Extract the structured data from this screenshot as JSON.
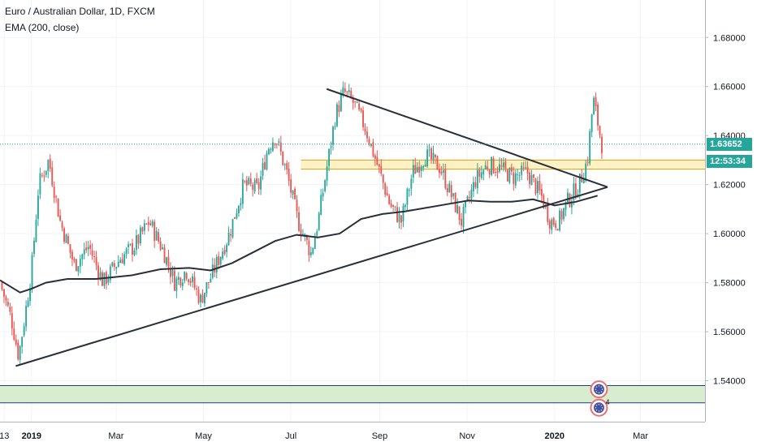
{
  "header": {
    "title": "Euro / Australian Dollar, 1D, FXCM",
    "indicator": "EMA (200, close)"
  },
  "price_axis": {
    "current_price": "1.63652",
    "countdown": "12:53:34"
  },
  "colors": {
    "up": "#26a69a",
    "down": "#ef5350",
    "ema": "#2a2e39",
    "trendline": "#2a2e39",
    "resistance_zone": "#fff2c2",
    "support_zone": "#d8edd0",
    "price_line": "#26a69a"
  },
  "chart_data": {
    "type": "candlestick",
    "title": "Euro / Australian Dollar, 1D, FXCM",
    "ylim": [
      1.5233,
      1.6953
    ],
    "y_ticks": [
      "1.68000",
      "1.66000",
      "1.64000",
      "1.62000",
      "1.60000",
      "1.58000",
      "1.56000",
      "1.54000"
    ],
    "x_ticks": [
      "13",
      "2019",
      "Mar",
      "May",
      "Jul",
      "Sep",
      "Nov",
      "2020",
      "Mar"
    ],
    "x_tick_days": [
      -19,
      0,
      59,
      120,
      181,
      243,
      304,
      365,
      425
    ],
    "x_range_days": [
      -22,
      470
    ],
    "grid": true,
    "last_price": 1.63652,
    "zones": [
      {
        "name": "resistance",
        "from": 1.6263,
        "to": 1.63
      },
      {
        "name": "support",
        "from": 1.531,
        "to": 1.538
      }
    ],
    "trendlines": [
      {
        "from": {
          "day": -11,
          "price": 1.546
        },
        "to": {
          "day": 402,
          "price": 1.619
        }
      },
      {
        "from": {
          "day": 206,
          "price": 1.659
        },
        "to": {
          "day": 402,
          "price": 1.619
        }
      }
    ],
    "ema_200": {
      "days": [
        -22,
        -8,
        0,
        10,
        25,
        45,
        70,
        90,
        110,
        125,
        140,
        155,
        170,
        185,
        200,
        215,
        230,
        245,
        260,
        275,
        290,
        305,
        320,
        335,
        350,
        365,
        380,
        395
      ],
      "values": [
        1.581,
        1.576,
        1.5775,
        1.58,
        1.5815,
        1.5815,
        1.583,
        1.5855,
        1.586,
        1.585,
        1.588,
        1.5925,
        1.597,
        1.5995,
        1.5985,
        1.6,
        1.606,
        1.608,
        1.609,
        1.6105,
        1.612,
        1.6135,
        1.613,
        1.613,
        1.614,
        1.6115,
        1.613,
        1.6155
      ]
    },
    "price_path": {
      "days": [
        -22,
        -14,
        -9,
        -5,
        0,
        5,
        12,
        20,
        30,
        40,
        50,
        62,
        72,
        82,
        92,
        100,
        108,
        118,
        128,
        138,
        148,
        158,
        165,
        170,
        178,
        186,
        195,
        200,
        205,
        212,
        218,
        225,
        233,
        243,
        250,
        258,
        266,
        275,
        285,
        292,
        300,
        310,
        318,
        326,
        336,
        346,
        356,
        362,
        368,
        374,
        382,
        388,
        392,
        398
      ],
      "closes": [
        1.58,
        1.565,
        1.55,
        1.565,
        1.585,
        1.62,
        1.63,
        1.605,
        1.587,
        1.595,
        1.58,
        1.59,
        1.595,
        1.605,
        1.593,
        1.58,
        1.585,
        1.573,
        1.586,
        1.6,
        1.62,
        1.618,
        1.635,
        1.64,
        1.625,
        1.605,
        1.592,
        1.605,
        1.623,
        1.648,
        1.658,
        1.653,
        1.643,
        1.625,
        1.612,
        1.605,
        1.625,
        1.632,
        1.627,
        1.617,
        1.605,
        1.622,
        1.628,
        1.627,
        1.623,
        1.625,
        1.615,
        1.605,
        1.605,
        1.613,
        1.62,
        1.63,
        1.655,
        1.6365
      ]
    },
    "markers": [
      {
        "name": "event-marker-1",
        "day": 396,
        "price": 1.5365
      },
      {
        "name": "event-marker-2",
        "day": 396,
        "price": 1.529,
        "badge": "4"
      }
    ]
  }
}
